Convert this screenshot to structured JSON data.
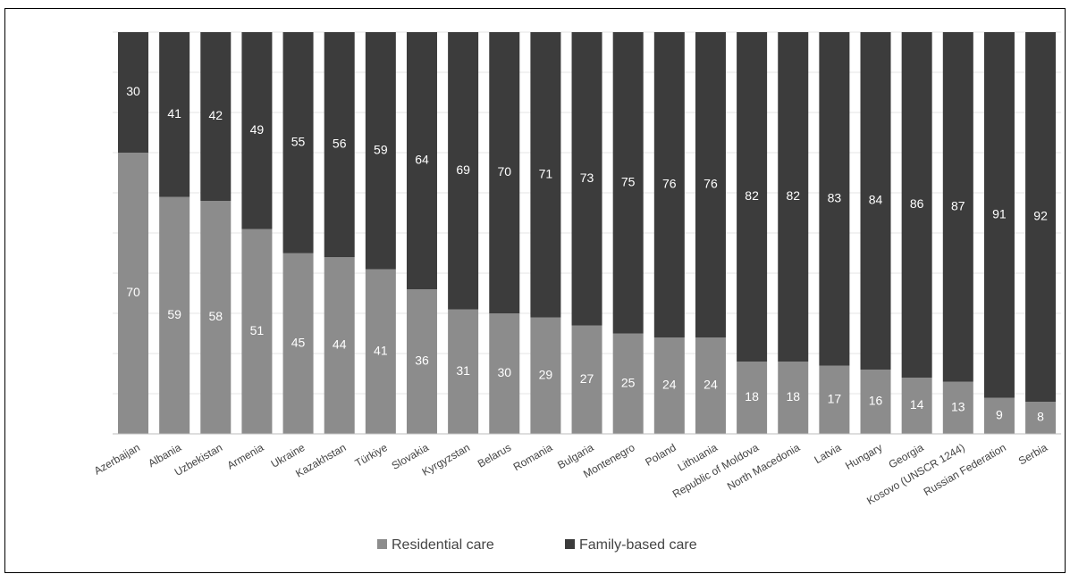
{
  "chart_data": {
    "type": "bar",
    "stacked": true,
    "percent_stacked": true,
    "categories": [
      "Azerbaijan",
      "Albania",
      "Uzbekistan",
      "Armenia",
      "Ukraine",
      "Kazakhstan",
      "Türkiye",
      "Slovakia",
      "Kyrgyzstan",
      "Belarus",
      "Romania",
      "Bulgaria",
      "Montenegro",
      "Poland",
      "Lithuania",
      "Republic of Moldova",
      "North Macedonia",
      "Latvia",
      "Hungary",
      "Georgia",
      "Kosovo (UNSCR 1244)",
      "Russian Federation",
      "Serbia"
    ],
    "series": [
      {
        "name": "Residential care",
        "color": "#8c8c8c",
        "values": [
          70,
          59,
          58,
          51,
          45,
          44,
          41,
          36,
          31,
          30,
          29,
          27,
          25,
          24,
          24,
          18,
          18,
          17,
          16,
          14,
          13,
          9,
          8
        ]
      },
      {
        "name": "Family-based care",
        "color": "#3c3c3c",
        "values": [
          30,
          41,
          42,
          49,
          55,
          56,
          59,
          64,
          69,
          70,
          71,
          73,
          75,
          76,
          76,
          82,
          82,
          83,
          84,
          86,
          87,
          91,
          92
        ]
      }
    ],
    "ylim": [
      0,
      100
    ],
    "grid": true,
    "legend_position": "bottom-center",
    "title": "",
    "xlabel": "",
    "ylabel": ""
  }
}
